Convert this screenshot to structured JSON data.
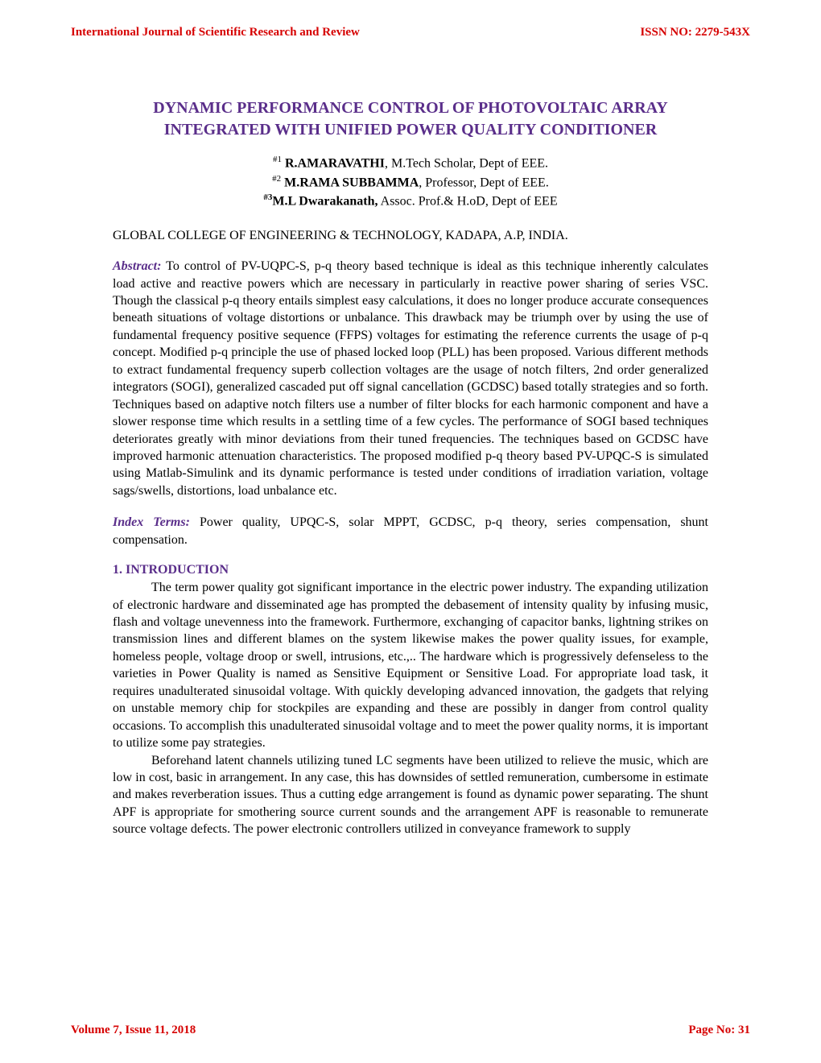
{
  "header": {
    "journal": "International Journal of Scientific Research and Review",
    "issn": "ISSN NO: 2279-543X"
  },
  "title": "DYNAMIC PERFORMANCE CONTROL OF PHOTOVOLTAIC ARRAY INTEGRATED WITH UNIFIED POWER QUALITY CONDITIONER",
  "authors": {
    "a1": {
      "sup": "#1",
      "name": "R.AMARAVATHI",
      "role": ", M.Tech Scholar, Dept of EEE."
    },
    "a2": {
      "sup": "#2",
      "name": "M.RAMA SUBBAMMA",
      "role": ", Professor, Dept of EEE."
    },
    "a3": {
      "sup": "#3",
      "name": "M.L Dwarakanath,",
      "role": " Assoc. Prof.& H.oD, Dept of EEE"
    }
  },
  "affiliation": "GLOBAL COLLEGE OF ENGINEERING & TECHNOLOGY,  KADAPA, A.P, INDIA.",
  "abstract": {
    "label": "Abstract:",
    "text": " To control of PV-UQPC-S, p-q theory based technique is ideal as this technique inherently calculates load active and reactive powers which are necessary in particularly in reactive power sharing of series VSC. Though the classical p-q theory entails simplest easy calculations, it does no longer produce accurate consequences beneath situations of voltage distortions or unbalance. This drawback may be triumph over by using the use of fundamental frequency positive sequence (FFPS) voltages for estimating the reference currents the usage of p-q concept. Modified p-q principle the use of phased locked loop (PLL) has been proposed. Various different methods to extract fundamental frequency superb collection voltages are the usage of notch filters, 2nd order generalized integrators (SOGI), generalized cascaded put off signal cancellation (GCDSC) based totally strategies and so forth. Techniques based on adaptive notch filters use a number of filter blocks for each harmonic component and have a slower response time which results in a settling time of a few cycles. The performance of SOGI based techniques deteriorates greatly with minor deviations from their tuned frequencies. The techniques based on GCDSC have improved harmonic attenuation characteristics. The proposed modified p-q theory based PV-UPQC-S is simulated using Matlab-Simulink and its dynamic performance is tested under conditions of irradiation variation, voltage sags/swells, distortions, load unbalance etc."
  },
  "index": {
    "label": "Index Terms:",
    "text": " Power quality, UPQC-S, solar MPPT, GCDSC, p-q theory, series compensation, shunt compensation."
  },
  "section1": {
    "heading": "1. INTRODUCTION",
    "p1": "The term power quality got significant importance in the electric power industry. The expanding utilization of electronic hardware and disseminated age has prompted the debasement of intensity quality by infusing music, flash and voltage unevenness into the framework. Furthermore, exchanging of capacitor banks, lightning strikes on transmission lines and different blames on the system likewise makes the power quality issues, for example, homeless people, voltage droop or swell, intrusions, etc.,.. The hardware which is progressively defenseless to the varieties in Power Quality is named as Sensitive Equipment or Sensitive Load. For appropriate load task, it requires unadulterated sinusoidal voltage. With quickly developing advanced innovation, the gadgets that relying on unstable memory chip for stockpiles are expanding and these are possibly in danger from control quality occasions. To accomplish this unadulterated sinusoidal voltage and to meet the power quality norms, it is important to utilize some pay strategies.",
    "p2": "Beforehand latent channels utilizing tuned LC segments have been utilized to relieve the music, which are low in cost, basic in arrangement. In any case, this has downsides of settled remuneration, cumbersome in estimate and makes reverberation issues. Thus a cutting edge arrangement is found as dynamic power separating. The shunt APF is appropriate for smothering source current sounds and the arrangement APF is reasonable to remunerate source voltage defects. The power electronic controllers utilized in conveyance framework to supply"
  },
  "footer": {
    "volume": "Volume 7, Issue 11, 2018",
    "page": "Page No: 31"
  },
  "colors": {
    "accent_red": "#d60000",
    "accent_purple": "#5a2e8a",
    "text": "#000000",
    "background": "#ffffff"
  },
  "typography": {
    "body_family": "Times New Roman",
    "body_size_pt": 12,
    "title_size_pt": 15,
    "header_size_pt": 11
  }
}
